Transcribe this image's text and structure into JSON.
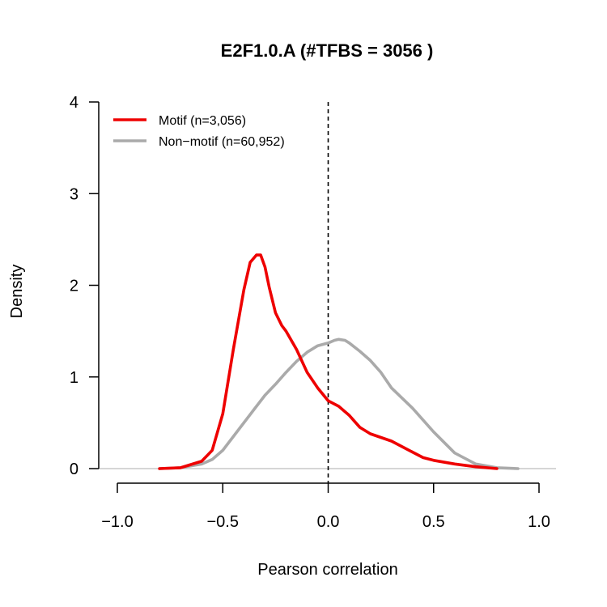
{
  "chart_data": {
    "type": "line",
    "title": "E2F1.0.A (#TFBS = 3056 )",
    "xlabel": "Pearson correlation",
    "ylabel": "Density",
    "xlim": [
      -1.0,
      1.0
    ],
    "ylim": [
      0,
      4
    ],
    "x_ticks": [
      "−1.0",
      "−0.5",
      "0.0",
      "0.5",
      "1.0"
    ],
    "y_ticks": [
      "0",
      "1",
      "2",
      "3",
      "4"
    ],
    "legend_position": "top-left",
    "reference_line": {
      "x": 0.0,
      "style": "dashed",
      "color": "#000000"
    },
    "baseline": {
      "y": 0,
      "color": "#bebebe"
    },
    "series": [
      {
        "name": "Motif (n=3,056)",
        "color": "#ee0000",
        "x": [
          -0.8,
          -0.7,
          -0.6,
          -0.55,
          -0.5,
          -0.45,
          -0.4,
          -0.37,
          -0.34,
          -0.32,
          -0.3,
          -0.28,
          -0.25,
          -0.22,
          -0.2,
          -0.15,
          -0.1,
          -0.05,
          0.0,
          0.05,
          0.1,
          0.15,
          0.2,
          0.3,
          0.4,
          0.45,
          0.5,
          0.6,
          0.7,
          0.8
        ],
        "y": [
          0.0,
          0.01,
          0.08,
          0.2,
          0.6,
          1.3,
          1.95,
          2.25,
          2.33,
          2.33,
          2.2,
          1.98,
          1.7,
          1.56,
          1.5,
          1.3,
          1.05,
          0.88,
          0.74,
          0.68,
          0.58,
          0.45,
          0.38,
          0.3,
          0.18,
          0.12,
          0.09,
          0.05,
          0.02,
          0.0
        ]
      },
      {
        "name": "Non−motif (n=60,952)",
        "color": "#aaaaaa",
        "x": [
          -0.8,
          -0.7,
          -0.6,
          -0.55,
          -0.5,
          -0.45,
          -0.4,
          -0.35,
          -0.3,
          -0.25,
          -0.2,
          -0.15,
          -0.1,
          -0.05,
          0.0,
          0.03,
          0.05,
          0.08,
          0.1,
          0.15,
          0.2,
          0.25,
          0.3,
          0.35,
          0.4,
          0.5,
          0.6,
          0.7,
          0.8,
          0.9
        ],
        "y": [
          0.0,
          0.01,
          0.05,
          0.1,
          0.2,
          0.35,
          0.5,
          0.65,
          0.8,
          0.92,
          1.05,
          1.17,
          1.27,
          1.34,
          1.37,
          1.4,
          1.41,
          1.4,
          1.37,
          1.28,
          1.18,
          1.05,
          0.88,
          0.77,
          0.66,
          0.4,
          0.17,
          0.05,
          0.01,
          0.0
        ]
      }
    ]
  }
}
